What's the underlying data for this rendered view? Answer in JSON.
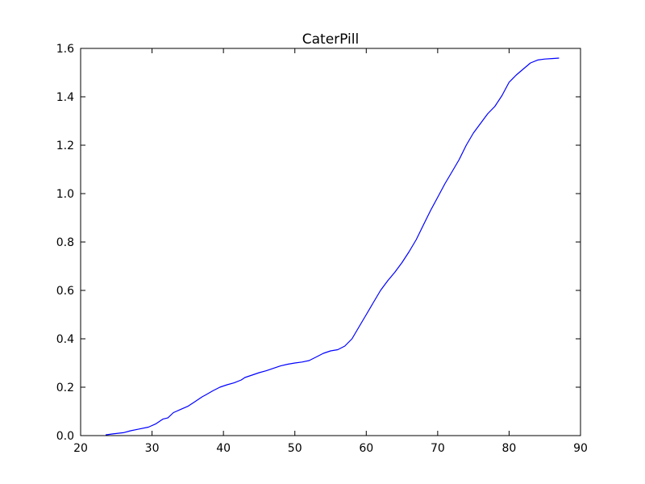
{
  "chart_data": {
    "type": "line",
    "title": "CaterPill",
    "xlabel": "",
    "ylabel": "",
    "xlim": [
      20,
      90
    ],
    "ylim": [
      0.0,
      1.6
    ],
    "xticks": [
      "20",
      "30",
      "40",
      "50",
      "60",
      "70",
      "80",
      "90"
    ],
    "yticks": [
      "0.0",
      "0.2",
      "0.4",
      "0.6",
      "0.8",
      "1.0",
      "1.2",
      "1.4",
      "1.6"
    ],
    "grid": false,
    "line_color": "#0000ff",
    "series": [
      {
        "x": [
          23.5,
          24.5,
          26.0,
          27.0,
          28.0,
          29.5,
          30.5,
          31.5,
          32.2,
          33.0,
          34.0,
          35.0,
          36.0,
          37.0,
          37.5,
          38.5,
          39.5,
          40.5,
          41.5,
          42.5,
          43.0,
          44.0,
          45.0,
          46.0,
          47.0,
          48.0,
          49.0,
          50.0,
          51.0,
          52.0,
          53.0,
          54.0,
          55.0,
          56.0,
          57.0,
          58.0,
          59.0,
          60.0,
          61.0,
          62.0,
          63.0,
          64.0,
          65.0,
          66.0,
          67.0,
          68.0,
          69.0,
          70.0,
          71.0,
          72.0,
          73.0,
          74.0,
          75.0,
          76.0,
          77.0,
          78.0,
          79.0,
          80.0,
          81.0,
          82.0,
          83.0,
          84.0,
          85.0,
          86.0,
          87.0
        ],
        "y": [
          0.003,
          0.007,
          0.012,
          0.02,
          0.026,
          0.035,
          0.048,
          0.068,
          0.073,
          0.095,
          0.108,
          0.121,
          0.14,
          0.16,
          0.168,
          0.185,
          0.2,
          0.21,
          0.218,
          0.23,
          0.24,
          0.25,
          0.26,
          0.268,
          0.278,
          0.288,
          0.295,
          0.3,
          0.304,
          0.31,
          0.325,
          0.34,
          0.35,
          0.355,
          0.37,
          0.4,
          0.45,
          0.5,
          0.55,
          0.6,
          0.64,
          0.675,
          0.715,
          0.76,
          0.81,
          0.87,
          0.93,
          0.985,
          1.04,
          1.09,
          1.14,
          1.2,
          1.25,
          1.29,
          1.33,
          1.36,
          1.405,
          1.46,
          1.49,
          1.515,
          1.54,
          1.552,
          1.556,
          1.558,
          1.56
        ]
      }
    ]
  }
}
